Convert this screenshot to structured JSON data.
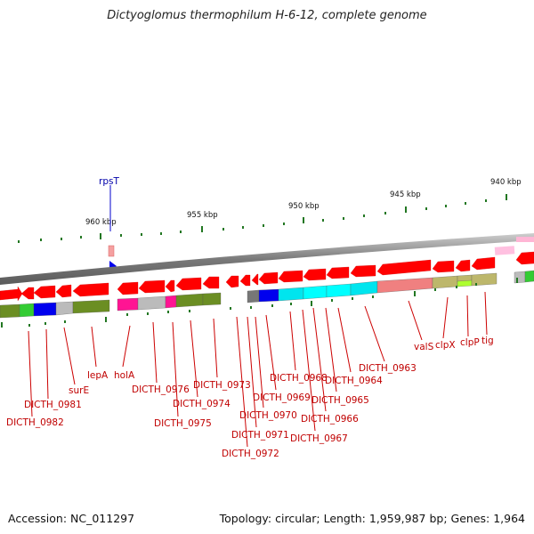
{
  "title": "Dictyoglomus thermophilum H-6-12, complete genome",
  "footer": {
    "accession": "Accession: NC_011297",
    "topology": "Topology: circular; Length: 1,959,987 bp; Genes: 1,964"
  },
  "scale_labels": [
    "960 kbp",
    "955 kbp",
    "950 kbp",
    "945 kbp",
    "940 kbp"
  ],
  "highlight_label": "rpsT",
  "gene_labels": [
    "DICTH_0982",
    "DICTH_0981",
    "surE",
    "lepA",
    "holA",
    "DICTH_0976",
    "DICTH_0975",
    "DICTH_0974",
    "DICTH_0973",
    "DICTH_0972",
    "DICTH_0971",
    "DICTH_0970",
    "DICTH_0969",
    "DICTH_0968",
    "DICTH_0967",
    "DICTH_0966",
    "DICTH_0965",
    "DICTH_0964",
    "DICTH_0963",
    "valS",
    "clpX",
    "clpP",
    "tig"
  ],
  "colors": {
    "gene_arrow": "#ff0000",
    "backbone": "#888888",
    "label": "#c00000",
    "highlight": "#0000cc",
    "olive": "#6b8e23",
    "cyan": "#00ffff",
    "blue": "#0000ff",
    "magenta": "#ff1493",
    "salmon": "#f08080",
    "khaki": "#bdb76b",
    "gray": "#bbbbbb",
    "green": "#33cc33"
  }
}
